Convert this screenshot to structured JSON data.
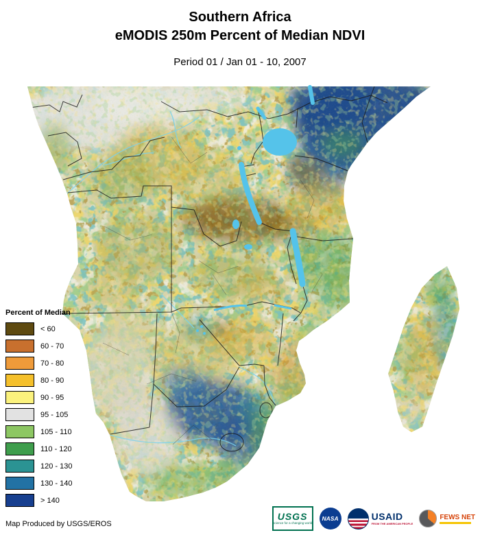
{
  "header": {
    "title_line1": "Southern Africa",
    "title_line2": "eMODIS 250m Percent of Median NDVI",
    "subtitle": "Period 01 / Jan 01 - 10, 2007"
  },
  "legend": {
    "title": "Percent of Median",
    "items": [
      {
        "label": "< 60",
        "color": "#5e4a10"
      },
      {
        "label": "60 - 70",
        "color": "#c8702e"
      },
      {
        "label": "70 - 80",
        "color": "#ef9b3a"
      },
      {
        "label": "80 - 90",
        "color": "#f5c02b"
      },
      {
        "label": "90 - 95",
        "color": "#fbf27d"
      },
      {
        "label": "95 - 105",
        "color": "#e2e2e2"
      },
      {
        "label": "105 - 110",
        "color": "#8dc763"
      },
      {
        "label": "110 - 120",
        "color": "#3f9e4d"
      },
      {
        "label": "120 - 130",
        "color": "#2b9393"
      },
      {
        "label": "130 - 140",
        "color": "#2272a4"
      },
      {
        "label": "> 140",
        "color": "#173f8f"
      }
    ]
  },
  "map": {
    "lake_color": "#55c3ea",
    "ocean_color": "#ffffff"
  },
  "footer": {
    "attribution": "Map Produced by USGS/EROS",
    "logos": [
      {
        "name": "USGS",
        "tagline": "science for a changing world"
      },
      {
        "name": "NASA"
      },
      {
        "name": "USAID",
        "tagline": "FROM THE AMERICAN PEOPLE"
      },
      {
        "name": "FEWS NET"
      }
    ]
  }
}
